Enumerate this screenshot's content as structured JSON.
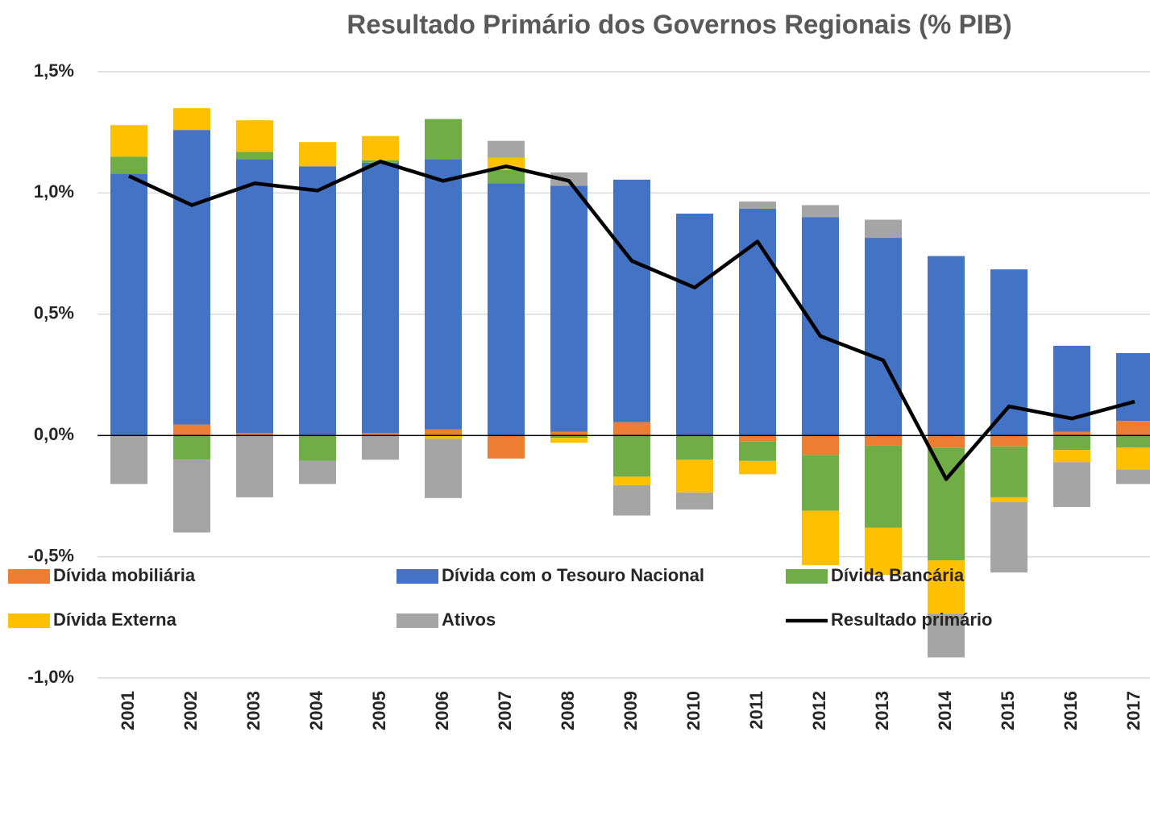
{
  "chart_data": {
    "type": "bar",
    "stacked": true,
    "title": "Resultado Primário dos Governos Regionais (% PIB)",
    "categories": [
      "2001",
      "2002",
      "2003",
      "2004",
      "2005",
      "2006",
      "2007",
      "2008",
      "2009",
      "2010",
      "2011",
      "2012",
      "2013",
      "2014",
      "2015",
      "2016",
      "2017"
    ],
    "series": [
      {
        "name": "Dívida mobiliária",
        "color": "#ED7D31",
        "values": [
          0,
          0.045,
          0.01,
          0,
          0.01,
          0.025,
          -0.095,
          0.015,
          0.055,
          0,
          -0.025,
          -0.08,
          -0.04,
          -0.05,
          -0.045,
          0.015,
          0.06
        ]
      },
      {
        "name": "Dívida com o Tesouro Nacional",
        "color": "#4472C4",
        "values": [
          1.08,
          1.215,
          1.13,
          1.11,
          1.115,
          1.115,
          1.04,
          1.015,
          1.0,
          0.915,
          0.935,
          0.9,
          0.815,
          0.74,
          0.685,
          0.355,
          0.28
        ]
      },
      {
        "name": "Dívida Bancária",
        "color": "#70AD47",
        "values": [
          0.07,
          -0.1,
          0.03,
          -0.105,
          0.01,
          0.165,
          0.055,
          -0.01,
          -0.17,
          -0.1,
          -0.08,
          -0.23,
          -0.34,
          -0.465,
          -0.21,
          -0.06,
          -0.05
        ]
      },
      {
        "name": "Dívida Externa",
        "color": "#FFC000",
        "values": [
          0.13,
          0.09,
          0.13,
          0.1,
          0.1,
          -0.013,
          0.05,
          -0.02,
          -0.035,
          -0.135,
          -0.055,
          -0.225,
          -0.195,
          -0.22,
          -0.02,
          -0.05,
          -0.09
        ]
      },
      {
        "name": "Ativos",
        "color": "#A5A5A5",
        "values": [
          -0.2,
          -0.3,
          -0.255,
          -0.095,
          -0.1,
          -0.245,
          0.07,
          0.055,
          -0.125,
          -0.07,
          0.03,
          0.05,
          0.075,
          -0.18,
          -0.29,
          -0.185,
          -0.06
        ]
      },
      {
        "name": "Resultado primário",
        "color": "#000000",
        "type": "line",
        "values": [
          1.07,
          0.95,
          1.04,
          1.01,
          1.13,
          1.05,
          1.11,
          1.05,
          0.72,
          0.61,
          0.8,
          0.41,
          0.31,
          -0.18,
          0.12,
          0.07,
          0.14
        ]
      }
    ],
    "ylim": [
      -1.0,
      1.5
    ],
    "yticks": [
      {
        "value": -1.0,
        "label": "-1,0%"
      },
      {
        "value": -0.5,
        "label": "-0,5%"
      },
      {
        "value": 0,
        "label": "0,0%"
      },
      {
        "value": 0.5,
        "label": "0,5%"
      },
      {
        "value": 1.0,
        "label": "1,0%"
      },
      {
        "value": 1.5,
        "label": "1,5%"
      }
    ],
    "grid": true
  }
}
